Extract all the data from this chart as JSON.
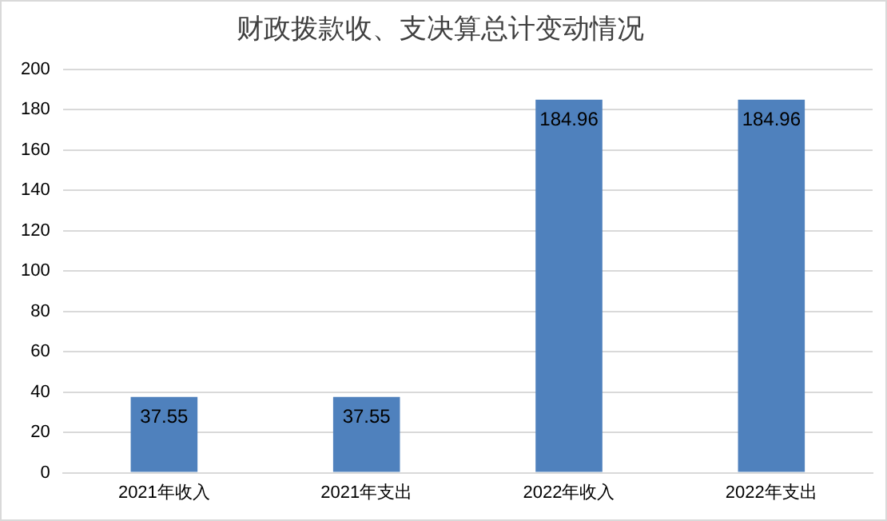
{
  "chart_data": {
    "type": "bar",
    "title": "财政拨款收、支决算总计变动情况",
    "categories": [
      "2021年收入",
      "2021年支出",
      "2022年收入",
      "2022年支出"
    ],
    "values": [
      37.55,
      37.55,
      184.96,
      184.96
    ],
    "color": "#4f81bd",
    "ylim": [
      0,
      200
    ],
    "yticks": [
      0,
      20,
      40,
      60,
      80,
      100,
      120,
      140,
      160,
      180,
      200
    ],
    "grid": "y",
    "data_labels": true
  }
}
